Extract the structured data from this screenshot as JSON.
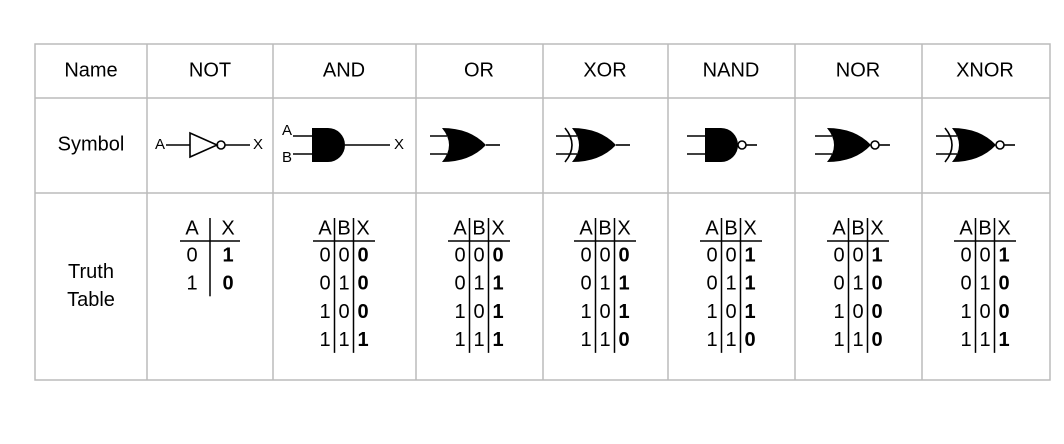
{
  "table": {
    "header": [
      "Name",
      "NOT",
      "AND",
      "OR",
      "XOR",
      "NAND",
      "NOR",
      "XNOR"
    ],
    "row_labels": [
      "Symbol",
      "Truth Table"
    ],
    "not_symbol": {
      "input": "A",
      "output": "X"
    },
    "and_symbol": {
      "inputs": [
        "A",
        "B"
      ],
      "output": "X"
    },
    "truth_tables": [
      {
        "columns": [
          "A",
          "X"
        ],
        "rows": [
          [
            0,
            1
          ],
          [
            1,
            0
          ]
        ]
      },
      {
        "columns": [
          "A",
          "B",
          "X"
        ],
        "rows": [
          [
            0,
            0,
            0
          ],
          [
            0,
            1,
            0
          ],
          [
            1,
            0,
            0
          ],
          [
            1,
            1,
            1
          ]
        ]
      },
      {
        "columns": [
          "A",
          "B",
          "X"
        ],
        "rows": [
          [
            0,
            0,
            0
          ],
          [
            0,
            1,
            1
          ],
          [
            1,
            0,
            1
          ],
          [
            1,
            1,
            1
          ]
        ]
      },
      {
        "columns": [
          "A",
          "B",
          "X"
        ],
        "rows": [
          [
            0,
            0,
            0
          ],
          [
            0,
            1,
            1
          ],
          [
            1,
            0,
            1
          ],
          [
            1,
            1,
            0
          ]
        ]
      },
      {
        "columns": [
          "A",
          "B",
          "X"
        ],
        "rows": [
          [
            0,
            0,
            1
          ],
          [
            0,
            1,
            1
          ],
          [
            1,
            0,
            1
          ],
          [
            1,
            1,
            0
          ]
        ]
      },
      {
        "columns": [
          "A",
          "B",
          "X"
        ],
        "rows": [
          [
            0,
            0,
            1
          ],
          [
            0,
            1,
            0
          ],
          [
            1,
            0,
            0
          ],
          [
            1,
            1,
            0
          ]
        ]
      },
      {
        "columns": [
          "A",
          "B",
          "X"
        ],
        "rows": [
          [
            0,
            0,
            1
          ],
          [
            0,
            1,
            0
          ],
          [
            1,
            0,
            0
          ],
          [
            1,
            1,
            1
          ]
        ]
      }
    ]
  }
}
